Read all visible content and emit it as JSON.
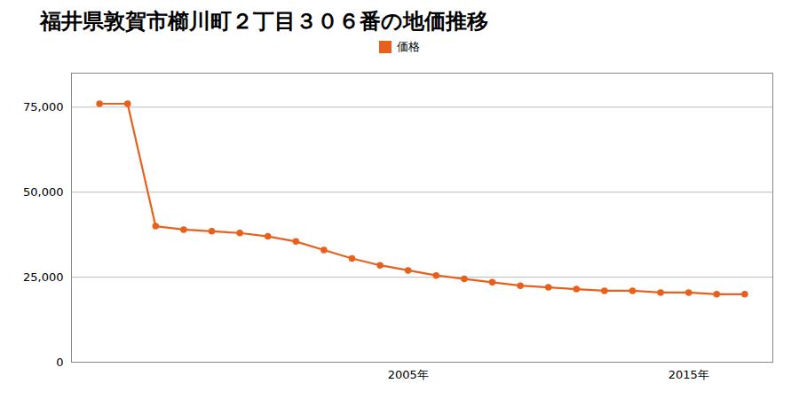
{
  "chart_data": {
    "type": "line",
    "title": "福井県敦賀市櫛川町２丁目３０６番の地価推移",
    "x": [
      1994,
      1995,
      1996,
      1997,
      1998,
      1999,
      2000,
      2001,
      2002,
      2003,
      2004,
      2005,
      2006,
      2007,
      2008,
      2009,
      2010,
      2011,
      2012,
      2013,
      2014,
      2015,
      2016,
      2017
    ],
    "series": [
      {
        "name": "価格",
        "color": "#e8601c",
        "marker": "circle",
        "values": [
          76000,
          76000,
          40000,
          39000,
          38500,
          38000,
          37000,
          35500,
          33000,
          30500,
          28500,
          27000,
          25500,
          24500,
          23500,
          22500,
          22000,
          21500,
          21000,
          21000,
          20500,
          20500,
          20000,
          20000
        ]
      }
    ],
    "xlim": [
      1993,
      2018
    ],
    "xticks": [
      {
        "value": 2005,
        "label": "2005年"
      },
      {
        "value": 2015,
        "label": "2015年"
      }
    ],
    "ylim": [
      0,
      85000
    ],
    "yticks": [
      0,
      {
        "value": 25000,
        "label": "25,000"
      },
      {
        "value": 50000,
        "label": "50,000"
      },
      {
        "value": 75000,
        "label": "75,000"
      }
    ],
    "grid": "y",
    "legend": "top"
  }
}
